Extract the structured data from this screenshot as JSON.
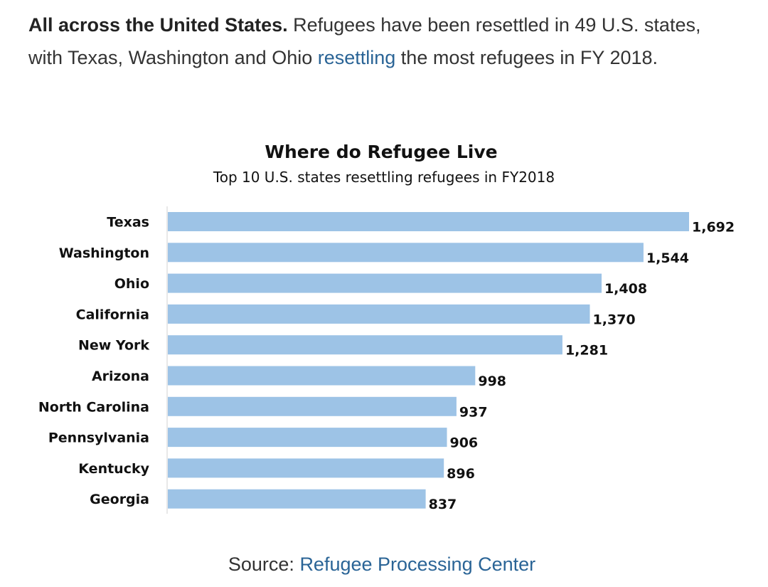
{
  "intro": {
    "lead": "All across the United States.",
    "text_before_link": " Refugees have been resettled in 49 U.S. states, with Texas, Washington and Ohio ",
    "link": "resettling",
    "text_after_link": " the most refugees in FY 2018."
  },
  "source": {
    "prefix": "Source: ",
    "link": "Refugee Processing Center"
  },
  "colors": {
    "bar": "#9dc3e6",
    "link": "#2a6496",
    "axis": "#d0d0d0"
  },
  "chart_data": {
    "type": "bar",
    "orientation": "horizontal",
    "title": "Where do Refugee Live",
    "subtitle": "Top 10 U.S. states resettling refugees in FY2018",
    "categories": [
      "Texas",
      "Washington",
      "Ohio",
      "California",
      "New York",
      "Arizona",
      "North Carolina",
      "Pennsylvania",
      "Kentucky",
      "Georgia"
    ],
    "values": [
      1692,
      1544,
      1408,
      1370,
      1281,
      998,
      937,
      906,
      896,
      837
    ],
    "value_labels": [
      "1,692",
      "1,544",
      "1,408",
      "1,370",
      "1,281",
      "998",
      "937",
      "906",
      "896",
      "837"
    ],
    "xlim": [
      0,
      1692
    ],
    "xlabel": "",
    "ylabel": "",
    "grid": false,
    "legend": "none"
  }
}
